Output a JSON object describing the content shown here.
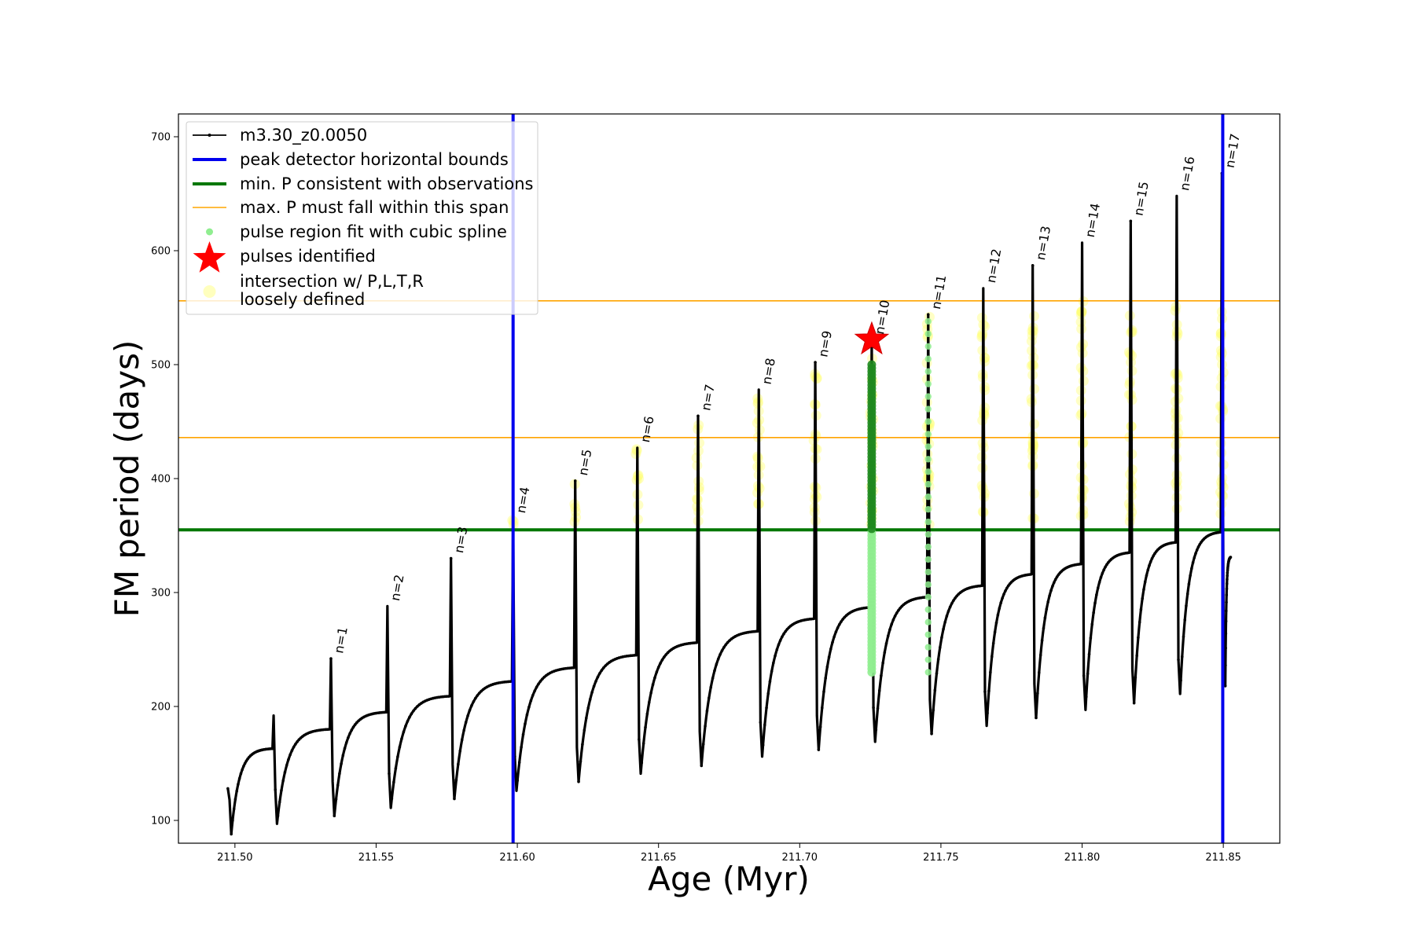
{
  "chart_data": {
    "type": "line",
    "title": "",
    "xlabel": "Age (Myr)",
    "ylabel": "FM period (days)",
    "xlim": [
      211.48,
      211.87
    ],
    "ylim": [
      80,
      720
    ],
    "xticks": [
      "211.50",
      "211.55",
      "211.60",
      "211.65",
      "211.70",
      "211.75",
      "211.80",
      "211.85"
    ],
    "xtick_values": [
      211.5,
      211.55,
      211.6,
      211.65,
      211.7,
      211.75,
      211.8,
      211.85
    ],
    "yticks": [
      "100",
      "200",
      "300",
      "400",
      "500",
      "600",
      "700"
    ],
    "ytick_values": [
      100,
      200,
      300,
      400,
      500,
      600,
      700
    ],
    "grid": false,
    "legend_position": "top-left",
    "legend": [
      {
        "label": "m3.30_z0.0050",
        "kind": "line-marker",
        "color": "#000000"
      },
      {
        "label": "peak detector horizontal bounds",
        "kind": "line",
        "color": "#0000ee"
      },
      {
        "label": "min. P consistent with observations",
        "kind": "line",
        "color": "#007700"
      },
      {
        "label": "max. P must fall within this span",
        "kind": "line",
        "color": "#ffa500"
      },
      {
        "label": "pulse region fit with cubic spline",
        "kind": "dot",
        "color": "#90ee90"
      },
      {
        "label": "pulses identified",
        "kind": "star",
        "color": "#ff0000"
      },
      {
        "label": "intersection w/ P,L,T,R",
        "label2": "loosely defined",
        "kind": "circle",
        "color": "#ffffaa"
      }
    ],
    "series_name": "m3.30_z0.0050",
    "pulses": [
      {
        "label": "",
        "t": 211.4975,
        "trough": 88,
        "peak": 128,
        "base": 163,
        "tend": 211.5137
      },
      {
        "label": "",
        "t": 211.5137,
        "trough": 97,
        "peak": 192,
        "base": 180,
        "tend": 211.534
      },
      {
        "label": "n=1",
        "t": 211.534,
        "trough": 104,
        "peak": 242,
        "base": 195,
        "tend": 211.554
      },
      {
        "label": "n=2",
        "t": 211.554,
        "trough": 111,
        "peak": 288,
        "base": 209,
        "tend": 211.5765
      },
      {
        "label": "n=3",
        "t": 211.5765,
        "trough": 119,
        "peak": 330,
        "base": 222,
        "tend": 211.5985
      },
      {
        "label": "n=4",
        "t": 211.5985,
        "trough": 126,
        "peak": 365,
        "base": 234,
        "tend": 211.6205
      },
      {
        "label": "n=5",
        "t": 211.6205,
        "trough": 134,
        "peak": 398,
        "base": 245,
        "tend": 211.6425
      },
      {
        "label": "n=6",
        "t": 211.6425,
        "trough": 141,
        "peak": 427,
        "base": 256,
        "tend": 211.664
      },
      {
        "label": "n=7",
        "t": 211.664,
        "trough": 148,
        "peak": 455,
        "base": 266,
        "tend": 211.6855
      },
      {
        "label": "n=8",
        "t": 211.6855,
        "trough": 156,
        "peak": 478,
        "base": 277,
        "tend": 211.7055
      },
      {
        "label": "n=9",
        "t": 211.7055,
        "trough": 162,
        "peak": 502,
        "base": 287,
        "tend": 211.7255
      },
      {
        "label": "n=10",
        "t": 211.7255,
        "trough": 169,
        "peak": 522,
        "base": 296,
        "tend": 211.7455
      },
      {
        "label": "n=11",
        "t": 211.7455,
        "trough": 176,
        "peak": 544,
        "base": 306,
        "tend": 211.765
      },
      {
        "label": "n=12",
        "t": 211.765,
        "trough": 183,
        "peak": 567,
        "base": 316,
        "tend": 211.7825
      },
      {
        "label": "n=13",
        "t": 211.7825,
        "trough": 190,
        "peak": 587,
        "base": 325,
        "tend": 211.8
      },
      {
        "label": "n=14",
        "t": 211.8,
        "trough": 197,
        "peak": 607,
        "base": 335,
        "tend": 211.8172
      },
      {
        "label": "n=15",
        "t": 211.8172,
        "trough": 203,
        "peak": 626,
        "base": 344,
        "tend": 211.8335
      },
      {
        "label": "n=16",
        "t": 211.8335,
        "trough": 211,
        "peak": 648,
        "base": 353,
        "tend": 211.8495
      },
      {
        "label": "n=17",
        "t": 211.8495,
        "trough": 218,
        "peak": 668,
        "base": 331,
        "tend": 211.853
      }
    ],
    "vertical_bounds": [
      211.5985,
      211.8498
    ],
    "min_period_line": 355,
    "max_period_span": [
      436,
      556
    ],
    "identified_pulse": {
      "t": 211.7255,
      "y": 522
    },
    "spline_pulse": {
      "t_main": 211.7255,
      "t_next": 211.7455,
      "ymin": 230,
      "ymax": 500
    },
    "yellow_span": [
      355,
      556
    ]
  }
}
